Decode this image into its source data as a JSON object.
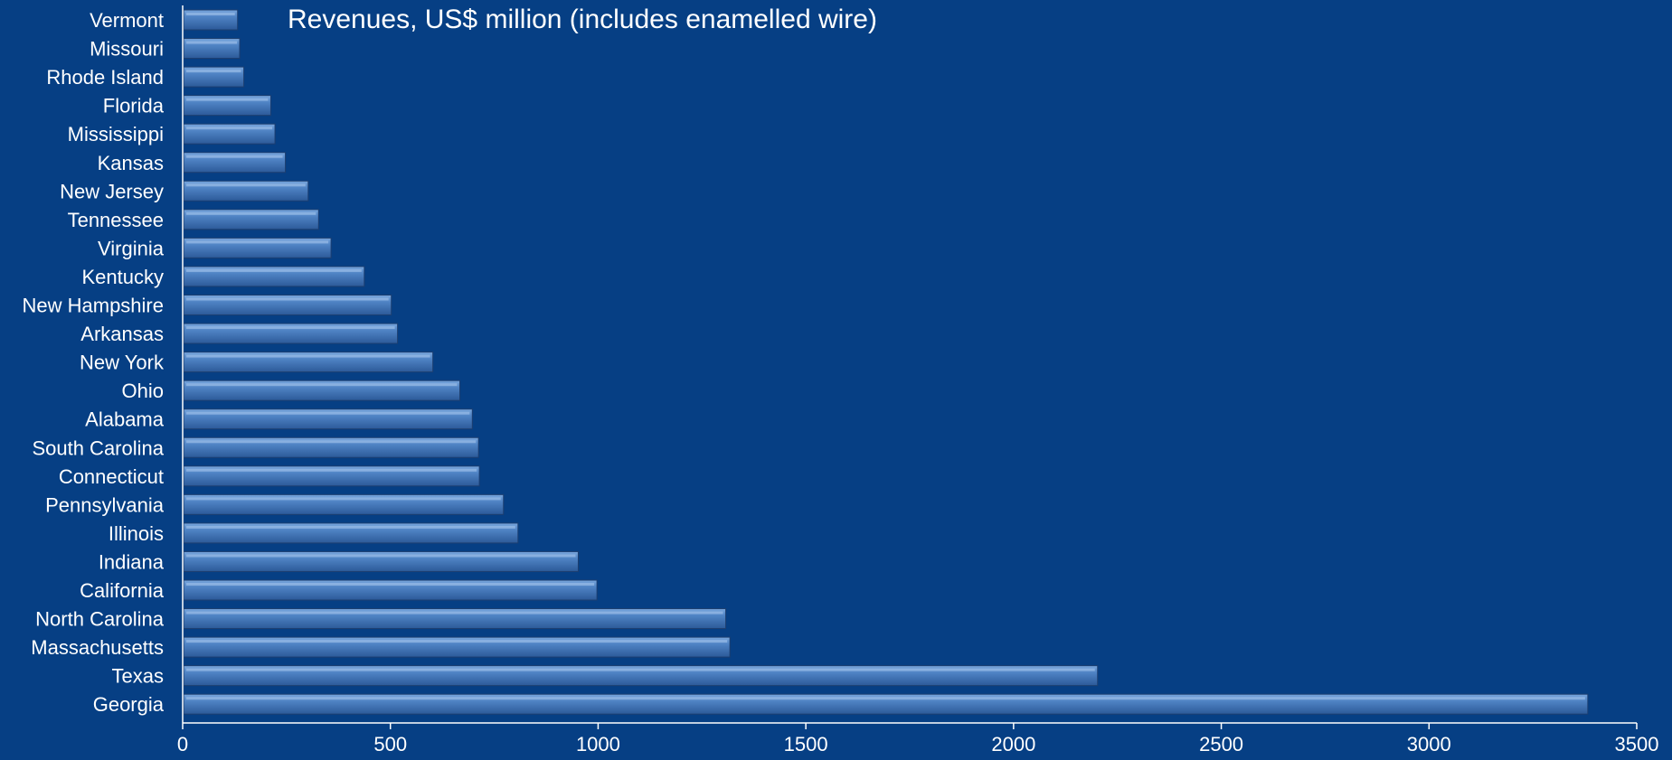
{
  "chart_data": {
    "type": "bar",
    "orientation": "horizontal",
    "title": "Revenues, US$ million (includes enamelled wire)",
    "categories": [
      "Vermont",
      "Missouri",
      "Rhode Island",
      "Florida",
      "Mississippi",
      "Kansas",
      "New Jersey",
      "Tennessee",
      "Virginia",
      "Kentucky",
      "New Hampshire",
      "Arkansas",
      "New York",
      "Ohio",
      "Alabama",
      "South Carolina",
      "Connecticut",
      "Pennsylvania",
      "Illinois",
      "Indiana",
      "California",
      "North Carolina",
      "Massachusetts",
      "Texas",
      "Georgia"
    ],
    "values": [
      130,
      135,
      145,
      210,
      220,
      245,
      300,
      325,
      355,
      435,
      500,
      515,
      600,
      665,
      695,
      710,
      712,
      770,
      805,
      950,
      995,
      1305,
      1315,
      2200,
      3380
    ],
    "xlim": [
      0,
      3500
    ],
    "x_ticks": [
      "0",
      "500",
      "1000",
      "1500",
      "2000",
      "2500",
      "3000",
      "3500"
    ],
    "grid": false,
    "legend": "none",
    "colors": {
      "background": "#063f84",
      "bar_light": "#7aa7dd",
      "bar_mid": "#4f83c4",
      "bar_dark": "#2c5a99",
      "axis": "#ffffff",
      "text": "#ffffff"
    }
  }
}
